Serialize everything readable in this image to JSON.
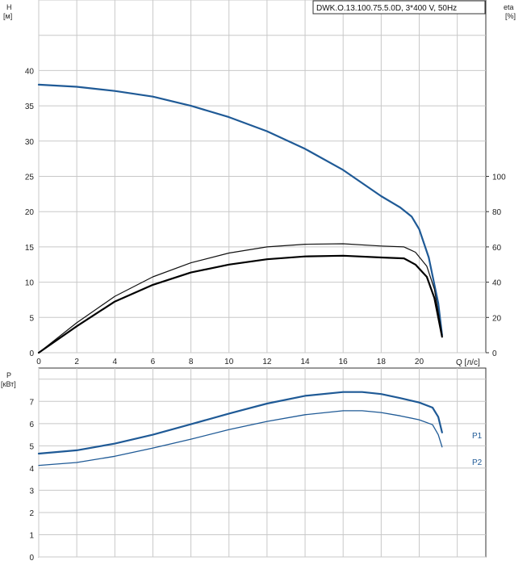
{
  "chart_data": [
    {
      "type": "line",
      "title": "DWK.O.13.100.75.5.0D, 3*400 V, 50Hz",
      "xlabel": "Q [л/с]",
      "ylabel": "H",
      "ylabel_unit": "[м]",
      "y2label": "eta",
      "y2label_unit": "[%]",
      "xlim": [
        0,
        23.5
      ],
      "ylim": [
        0,
        50
      ],
      "y2lim": [
        0,
        200
      ],
      "x_ticks": [
        "0",
        "2",
        "4",
        "6",
        "8",
        "10",
        "12",
        "14",
        "16",
        "18",
        "20"
      ],
      "x_tick_values": [
        0,
        2,
        4,
        6,
        8,
        10,
        12,
        14,
        16,
        18,
        20
      ],
      "y_ticks": [
        "0",
        "5",
        "10",
        "15",
        "20",
        "25",
        "30",
        "35",
        "40"
      ],
      "y_tick_values": [
        0,
        5,
        10,
        15,
        20,
        25,
        30,
        35,
        40
      ],
      "y2_ticks": [
        "0",
        "20",
        "40",
        "60",
        "80",
        "100"
      ],
      "y2_tick_values": [
        0,
        20,
        40,
        60,
        80,
        100
      ],
      "grid": true,
      "series": [
        {
          "axis": "y",
          "color": "#1f5a96",
          "points": [
            [
              0,
              38
            ],
            [
              2,
              37.7
            ],
            [
              4,
              37.1
            ],
            [
              6,
              36.3
            ],
            [
              8,
              35
            ],
            [
              10,
              33.4
            ],
            [
              12,
              31.4
            ],
            [
              14,
              28.9
            ],
            [
              16,
              25.9
            ],
            [
              18,
              22.2
            ],
            [
              19,
              20.6
            ],
            [
              19.6,
              19.3
            ],
            [
              20,
              17.5
            ],
            [
              20.5,
              13.5
            ],
            [
              21,
              7
            ],
            [
              21.2,
              2.5
            ]
          ]
        },
        {
          "axis": "y2",
          "color": "#111111",
          "points": [
            [
              0,
              0
            ],
            [
              2,
              17
            ],
            [
              4,
              32
            ],
            [
              6,
              43
            ],
            [
              8,
              51
            ],
            [
              10,
              56.5
            ],
            [
              12,
              60
            ],
            [
              14,
              61.5
            ],
            [
              16,
              61.8
            ],
            [
              18,
              60.5
            ],
            [
              19.2,
              60
            ],
            [
              19.8,
              57
            ],
            [
              20.4,
              49
            ],
            [
              20.8,
              36
            ],
            [
              21.2,
              10
            ]
          ]
        },
        {
          "axis": "y2",
          "color": "#000000",
          "points": [
            [
              0,
              0
            ],
            [
              2,
              15
            ],
            [
              4,
              29
            ],
            [
              6,
              38.5
            ],
            [
              8,
              45.5
            ],
            [
              10,
              50
            ],
            [
              12,
              53
            ],
            [
              14,
              54.6
            ],
            [
              16,
              55
            ],
            [
              18,
              54
            ],
            [
              19.2,
              53.5
            ],
            [
              19.8,
              50
            ],
            [
              20.4,
              43
            ],
            [
              20.8,
              31
            ],
            [
              21.2,
              9
            ]
          ]
        }
      ]
    },
    {
      "type": "line",
      "ylabel": "P",
      "ylabel_unit": "[кВт]",
      "xlim": [
        0,
        23.5
      ],
      "ylim": [
        0,
        8.5
      ],
      "y_ticks": [
        "0",
        "1",
        "2",
        "3",
        "4",
        "5",
        "6",
        "7"
      ],
      "y_tick_values": [
        0,
        1,
        2,
        3,
        4,
        5,
        6,
        7
      ],
      "grid": true,
      "series": [
        {
          "name": "P1",
          "color": "#1f5a96",
          "points": [
            [
              0,
              4.65
            ],
            [
              2,
              4.8
            ],
            [
              4,
              5.1
            ],
            [
              6,
              5.5
            ],
            [
              8,
              5.97
            ],
            [
              10,
              6.45
            ],
            [
              12,
              6.9
            ],
            [
              14,
              7.25
            ],
            [
              16,
              7.42
            ],
            [
              17,
              7.42
            ],
            [
              18,
              7.33
            ],
            [
              19,
              7.15
            ],
            [
              20,
              6.95
            ],
            [
              20.7,
              6.72
            ],
            [
              21,
              6.3
            ],
            [
              21.2,
              5.6
            ]
          ]
        },
        {
          "name": "P2",
          "color": "#1f5a96",
          "points": [
            [
              0,
              4.12
            ],
            [
              2,
              4.25
            ],
            [
              4,
              4.53
            ],
            [
              6,
              4.9
            ],
            [
              8,
              5.3
            ],
            [
              10,
              5.73
            ],
            [
              12,
              6.1
            ],
            [
              14,
              6.4
            ],
            [
              16,
              6.58
            ],
            [
              17,
              6.58
            ],
            [
              18,
              6.5
            ],
            [
              19,
              6.35
            ],
            [
              20,
              6.17
            ],
            [
              20.7,
              5.95
            ],
            [
              21,
              5.5
            ],
            [
              21.2,
              4.95
            ]
          ]
        }
      ]
    }
  ]
}
